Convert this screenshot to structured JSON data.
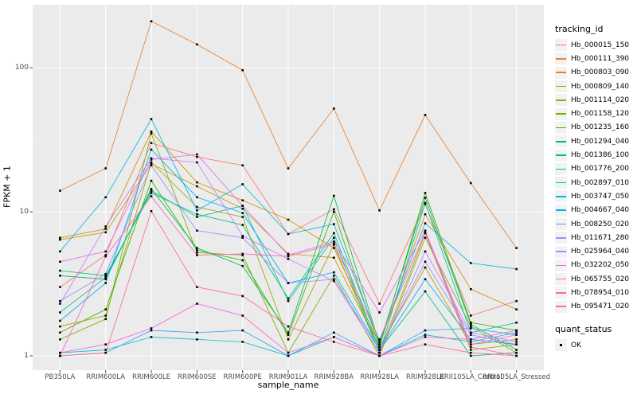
{
  "chart_data": {
    "type": "line",
    "title": "",
    "xlabel": "sample_name",
    "ylabel": "FPKM + 1",
    "legend_title": "tracking_id",
    "legend2_title": "quant_status",
    "quant_status_label": "OK",
    "legend_position": "right",
    "grid": true,
    "x_scale": "discrete",
    "y_scale": "log10",
    "ylim": [
      0.8,
      260
    ],
    "yticks": [
      1,
      10,
      100
    ],
    "y_minor_ticks": [
      3.162,
      31.62
    ],
    "point_shape": "filled-black-square",
    "colors": {
      "panel_bg": "#EBEBEB",
      "grid_major": "#FFFFFF",
      "grid_minor": "#F5F5F5",
      "axis_tick": "#333333",
      "tick_label": "#4D4D4D",
      "point": "#000000",
      "legend_key_bg": "#F2F2F2"
    },
    "categories": [
      "PB350LA",
      "RRIM600LA",
      "RRIM600LE",
      "RRIM600SE",
      "RRIM600PE",
      "RRIM901LA",
      "RRIM928BA",
      "RRIM928LA",
      "RRIM928LE",
      "RRII105LA_Control",
      "RRII105LA_Stressed"
    ],
    "series": [
      {
        "name": "Hb_000015_150",
        "color": "#F8766D",
        "values": [
          3.0,
          5.0,
          30,
          24,
          21,
          7.0,
          10.4,
          2.3,
          11.3,
          1.9,
          2.4
        ]
      },
      {
        "name": "Hb_000111_390",
        "color": "#EA8331",
        "values": [
          14,
          20,
          210,
          145,
          96,
          20,
          52,
          10.2,
          47,
          15.8,
          5.6
        ]
      },
      {
        "name": "Hb_000803_090",
        "color": "#D89000",
        "values": [
          6.6,
          7.6,
          36,
          16,
          12,
          8.8,
          5.6,
          1.2,
          9.6,
          2.9,
          2.1
        ]
      },
      {
        "name": "Hb_000809_140",
        "color": "#C09B00",
        "values": [
          6.4,
          7.2,
          21.5,
          15,
          10.5,
          5.1,
          4.8,
          1.15,
          4.1,
          1.2,
          1.3
        ]
      },
      {
        "name": "Hb_001114_020",
        "color": "#A3A500",
        "values": [
          1.6,
          1.9,
          22,
          10.8,
          9.2,
          1.3,
          5.9,
          1.05,
          7.1,
          1.1,
          1.2
        ]
      },
      {
        "name": "Hb_001158_120",
        "color": "#7CAE00",
        "values": [
          1.3,
          1.8,
          35,
          5.2,
          5.0,
          1.05,
          3.6,
          1.0,
          6.6,
          1.6,
          1.05
        ]
      },
      {
        "name": "Hb_001235_160",
        "color": "#39B600",
        "values": [
          1.45,
          2.1,
          16.4,
          5.4,
          4.6,
          1.4,
          10.0,
          1.15,
          13.5,
          1.7,
          1.5
        ]
      },
      {
        "name": "Hb_001294_040",
        "color": "#00BB4E",
        "values": [
          3.6,
          3.4,
          14.4,
          5.6,
          4.2,
          1.45,
          12.9,
          1.2,
          12.5,
          1.65,
          1.1
        ]
      },
      {
        "name": "Hb_001386_100",
        "color": "#00BF7D",
        "values": [
          3.9,
          3.6,
          13.5,
          9.6,
          8.1,
          2.5,
          7.1,
          1.1,
          2.8,
          1.0,
          1.05
        ]
      },
      {
        "name": "Hb_001776_200",
        "color": "#00C1A3",
        "values": [
          2.0,
          3.5,
          14,
          9.2,
          11,
          2.4,
          6.6,
          1.05,
          11.5,
          1.45,
          1.7
        ]
      },
      {
        "name": "Hb_002897_010",
        "color": "#00BFC4",
        "values": [
          1.05,
          1.1,
          1.35,
          1.3,
          1.25,
          1.0,
          1.35,
          1.0,
          1.4,
          1.25,
          1.45
        ]
      },
      {
        "name": "Hb_003747_050",
        "color": "#00BAE0",
        "values": [
          5.3,
          12.6,
          44,
          10.2,
          15.5,
          7.0,
          8.2,
          1.25,
          8.3,
          4.4,
          4.0
        ]
      },
      {
        "name": "Hb_004667_040",
        "color": "#00B0F6",
        "values": [
          1.75,
          3.2,
          27,
          12.6,
          9.8,
          3.2,
          3.8,
          1.1,
          3.4,
          1.3,
          1.2
        ]
      },
      {
        "name": "Hb_008250_020",
        "color": "#35A2FF",
        "values": [
          1.0,
          1.05,
          1.5,
          1.45,
          1.5,
          1.0,
          1.45,
          1.0,
          1.5,
          1.55,
          1.4
        ]
      },
      {
        "name": "Hb_011671_280",
        "color": "#9590FF",
        "values": [
          2.4,
          3.7,
          21,
          7.4,
          6.6,
          3.2,
          3.4,
          1.1,
          4.5,
          1.4,
          1.2
        ]
      },
      {
        "name": "Hb_025964_040",
        "color": "#C77CFF",
        "values": [
          2.3,
          7.9,
          23.5,
          22,
          6.8,
          4.7,
          3.3,
          1.05,
          5.3,
          1.45,
          1.25
        ]
      },
      {
        "name": "Hb_032202_050",
        "color": "#E76BF3",
        "values": [
          4.5,
          5.3,
          23,
          25,
          11,
          5.0,
          6.2,
          2.0,
          7.4,
          1.2,
          1.4
        ]
      },
      {
        "name": "Hb_065755_020",
        "color": "#FA62DB",
        "values": [
          1.05,
          1.2,
          1.55,
          2.3,
          1.9,
          1.05,
          1.35,
          1.0,
          1.35,
          1.3,
          1.5
        ]
      },
      {
        "name": "Hb_078954_010",
        "color": "#FF62BC",
        "values": [
          1.0,
          4.9,
          12.8,
          5.0,
          5.1,
          4.9,
          6.0,
          1.3,
          7.2,
          1.15,
          1.0
        ]
      },
      {
        "name": "Hb_095471_020",
        "color": "#FF6A98",
        "values": [
          1.0,
          1.05,
          10.1,
          3.0,
          2.6,
          1.6,
          1.25,
          1.0,
          1.2,
          1.05,
          1.0
        ]
      }
    ]
  }
}
